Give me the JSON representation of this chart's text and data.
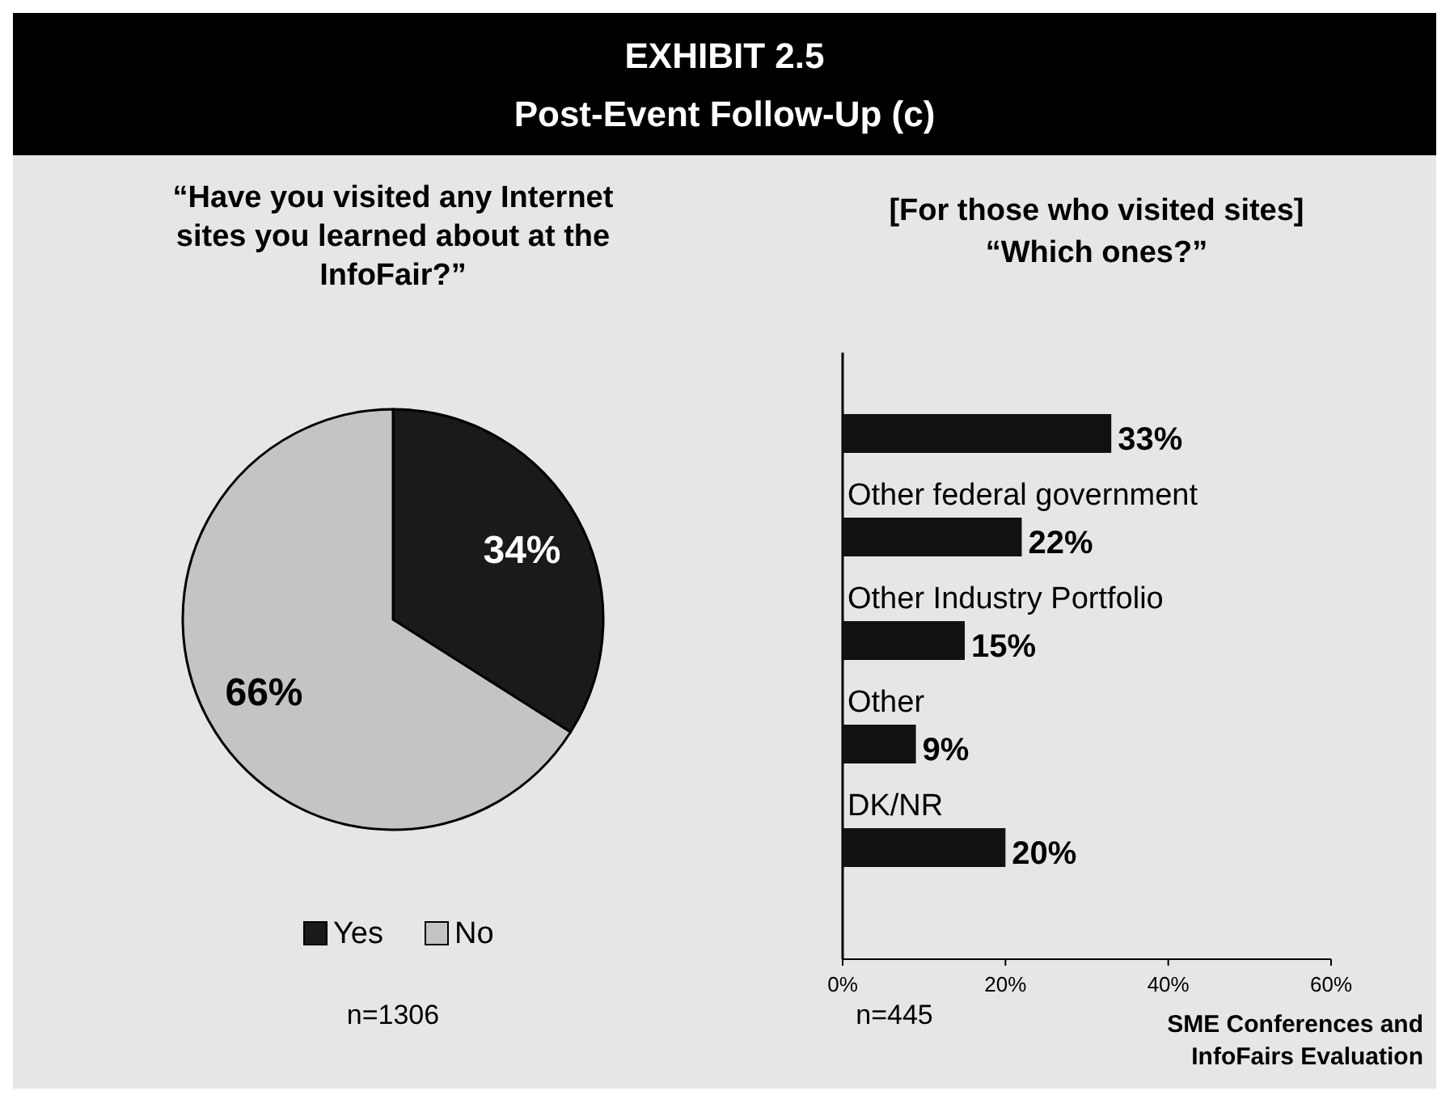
{
  "chart_data": [
    {
      "type": "other",
      "title": "EXHIBIT 2.5",
      "subtitle": "Post-Event Follow-Up (c)",
      "annotations": [
        "SME Conferences and InfoFairs Evaluation"
      ]
    },
    {
      "type": "pie",
      "title": "“Have you visited any Internet sites you learned about at the InfoFair?”",
      "categories": [
        "Yes",
        "No"
      ],
      "values": [
        34,
        66
      ],
      "colors": [
        "#1a1a1a",
        "#c4c4c4"
      ],
      "value_labels": [
        "34%",
        "66%"
      ],
      "legend": "bottom",
      "annotations": [
        "n=1306"
      ]
    },
    {
      "type": "bar",
      "orientation": "horizontal",
      "title": "[For those who visited sites]",
      "subtitle": "“Which ones?”",
      "categories": [
        null,
        "Other federal government",
        "Other Industry Portfolio",
        "Other",
        "DK/NR"
      ],
      "values": [
        33,
        22,
        15,
        9,
        20
      ],
      "value_labels": [
        "33%",
        "22%",
        "15%",
        "9%",
        "20%"
      ],
      "color": "#111111",
      "xlim": [
        0,
        60
      ],
      "xticks": [
        {
          "value": 0,
          "label": "0%"
        },
        {
          "value": 20,
          "label": "20%"
        },
        {
          "value": 40,
          "label": "40%"
        },
        {
          "value": 60,
          "label": "60%"
        }
      ],
      "grid": false,
      "annotations": [
        "n=445"
      ]
    }
  ]
}
